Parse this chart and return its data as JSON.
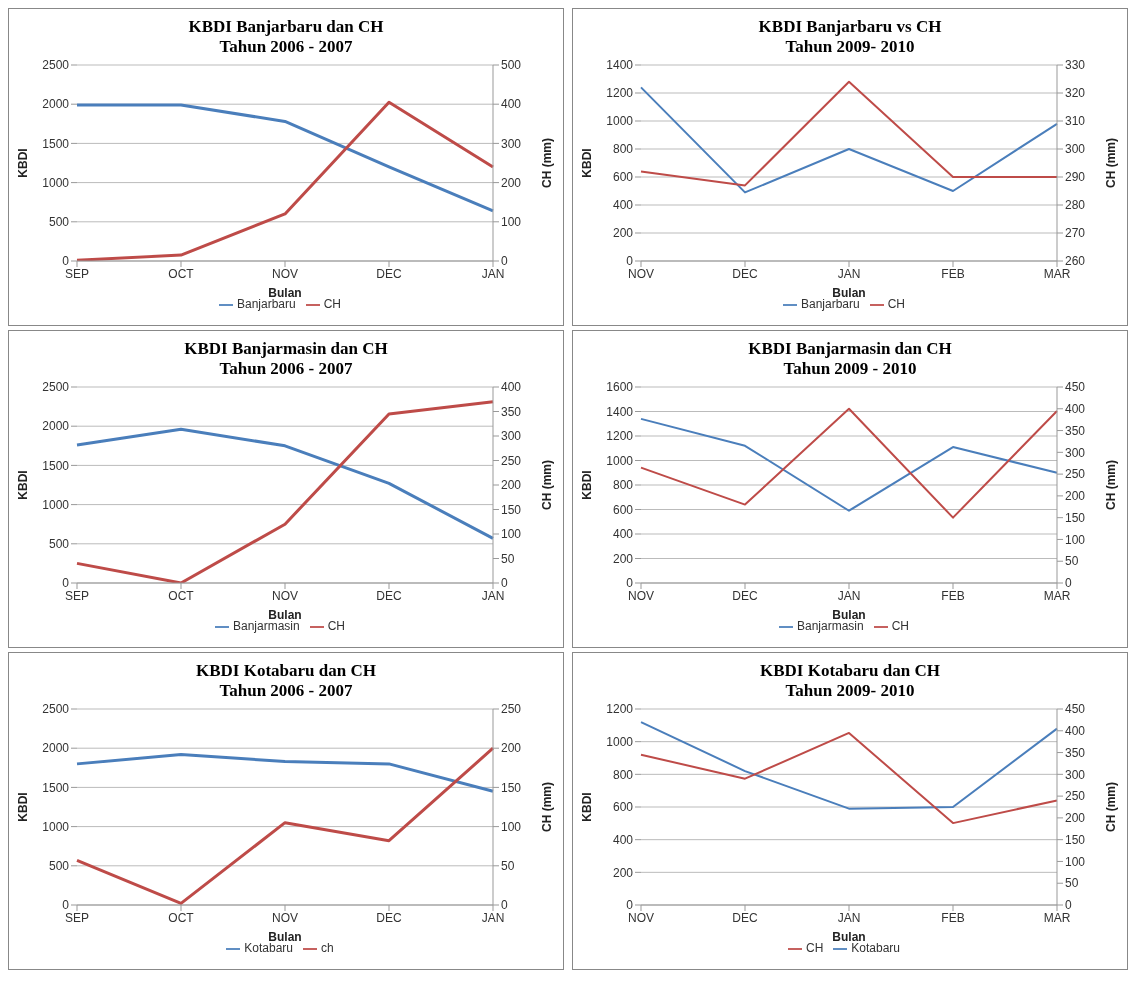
{
  "chart_data": [
    {
      "type": "line",
      "title": "KBDI Banjarbaru dan CH",
      "subtitle": "Tahun 2006 - 2007",
      "xlabel": "Bulan",
      "ylabel": "KBDI",
      "y2label": "CH (mm)",
      "categories": [
        "SEP",
        "OCT",
        "NOV",
        "DEC",
        "JAN"
      ],
      "ylim": [
        0,
        2500
      ],
      "yticks": [
        0,
        500,
        1000,
        1500,
        2000,
        2500
      ],
      "y2lim": [
        0,
        500
      ],
      "y2ticks": [
        0,
        100,
        200,
        300,
        400,
        500
      ],
      "grid": "y",
      "legend": "bottom",
      "marker": "none",
      "series": [
        {
          "name": "Banjarbaru",
          "color": "#4a7ebb",
          "values": [
            1990,
            1990,
            1780,
            1200,
            640
          ]
        },
        {
          "name": "CH",
          "color": "#be4b48",
          "axis": "y2",
          "values": [
            2,
            15,
            120,
            405,
            240
          ]
        }
      ]
    },
    {
      "type": "line",
      "title": "KBDI Banjarbaru vs CH",
      "subtitle": "Tahun 2009- 2010",
      "xlabel": "Bulan",
      "ylabel": "KBDI",
      "y2label": "CH (mm)",
      "categories": [
        "NOV",
        "DEC",
        "JAN",
        "FEB",
        "MAR"
      ],
      "ylim": [
        0,
        1400
      ],
      "yticks": [
        0,
        200,
        400,
        600,
        800,
        1000,
        1200,
        1400
      ],
      "y2lim": [
        260,
        330
      ],
      "y2ticks": [
        260,
        270,
        280,
        290,
        300,
        310,
        320,
        330
      ],
      "grid": "y",
      "legend": "bottom",
      "marker": "none",
      "series": [
        {
          "name": "Banjarbaru",
          "color": "#4a7ebb",
          "values": [
            1240,
            490,
            800,
            500,
            980
          ]
        },
        {
          "name": "CH",
          "color": "#be4b48",
          "axis": "y2",
          "values": [
            292,
            287,
            324,
            290,
            290
          ]
        }
      ]
    },
    {
      "type": "line",
      "title": "KBDI Banjarmasin dan CH",
      "subtitle": "Tahun 2006 - 2007",
      "xlabel": "Bulan",
      "ylabel": "KBDI",
      "y2label": "CH (mm)",
      "categories": [
        "SEP",
        "OCT",
        "NOV",
        "DEC",
        "JAN"
      ],
      "ylim": [
        0,
        2500
      ],
      "yticks": [
        0,
        500,
        1000,
        1500,
        2000,
        2500
      ],
      "y2lim": [
        0,
        400
      ],
      "y2ticks": [
        0,
        50,
        100,
        150,
        200,
        250,
        300,
        350,
        400
      ],
      "grid": "y",
      "legend": "bottom",
      "marker": "none",
      "series": [
        {
          "name": "Banjarmasin",
          "color": "#4a7ebb",
          "values": [
            1760,
            1960,
            1750,
            1270,
            570
          ]
        },
        {
          "name": "CH",
          "color": "#be4b48",
          "axis": "y2",
          "values": [
            40,
            0,
            120,
            345,
            370
          ]
        }
      ]
    },
    {
      "type": "line",
      "title": "KBDI Banjarmasin dan CH",
      "subtitle": "Tahun 2009 - 2010",
      "xlabel": "Bulan",
      "ylabel": "KBDI",
      "y2label": "CH (mm)",
      "categories": [
        "NOV",
        "DEC",
        "JAN",
        "FEB",
        "MAR"
      ],
      "ylim": [
        0,
        1600
      ],
      "yticks": [
        0,
        200,
        400,
        600,
        800,
        1000,
        1200,
        1400,
        1600
      ],
      "y2lim": [
        0,
        450
      ],
      "y2ticks": [
        0,
        50,
        100,
        150,
        200,
        250,
        300,
        350,
        400,
        450
      ],
      "grid": "y",
      "legend": "bottom",
      "marker": "none",
      "series": [
        {
          "name": "Banjarmasin",
          "color": "#4a7ebb",
          "values": [
            1340,
            1120,
            590,
            1110,
            900
          ]
        },
        {
          "name": "CH",
          "color": "#be4b48",
          "axis": "y2",
          "values": [
            265,
            180,
            400,
            150,
            395
          ]
        }
      ]
    },
    {
      "type": "line",
      "title": "KBDI Kotabaru dan CH",
      "subtitle": "Tahun 2006 - 2007",
      "xlabel": "Bulan",
      "ylabel": "KBDI",
      "y2label": "CH (mm)",
      "categories": [
        "SEP",
        "OCT",
        "NOV",
        "DEC",
        "JAN"
      ],
      "ylim": [
        0,
        2500
      ],
      "yticks": [
        0,
        500,
        1000,
        1500,
        2000,
        2500
      ],
      "y2lim": [
        0,
        250
      ],
      "y2ticks": [
        0,
        50,
        100,
        150,
        200,
        250
      ],
      "grid": "y",
      "legend": "bottom",
      "marker": "none",
      "series": [
        {
          "name": "Kotabaru",
          "color": "#4a7ebb",
          "values": [
            1800,
            1920,
            1830,
            1800,
            1450
          ]
        },
        {
          "name": "ch",
          "color": "#be4b48",
          "axis": "y2",
          "values": [
            57,
            2,
            105,
            82,
            200
          ]
        }
      ]
    },
    {
      "type": "line",
      "title": "KBDI Kotabaru dan CH",
      "subtitle": "Tahun 2009- 2010",
      "xlabel": "Bulan",
      "ylabel": "KBDI",
      "y2label": "CH (mm)",
      "categories": [
        "NOV",
        "DEC",
        "JAN",
        "FEB",
        "MAR"
      ],
      "ylim": [
        0,
        1200
      ],
      "yticks": [
        0,
        200,
        400,
        600,
        800,
        1000,
        1200
      ],
      "y2lim": [
        0,
        450
      ],
      "y2ticks": [
        0,
        50,
        100,
        150,
        200,
        250,
        300,
        350,
        400,
        450
      ],
      "grid": "y",
      "legend": "bottom",
      "marker": "none",
      "series": [
        {
          "name": "Kotabaru",
          "color": "#4a7ebb",
          "values": [
            1120,
            820,
            590,
            600,
            1080
          ]
        },
        {
          "name": "CH",
          "color": "#be4b48",
          "axis": "y2",
          "values": [
            345,
            290,
            395,
            188,
            240
          ]
        }
      ]
    }
  ]
}
